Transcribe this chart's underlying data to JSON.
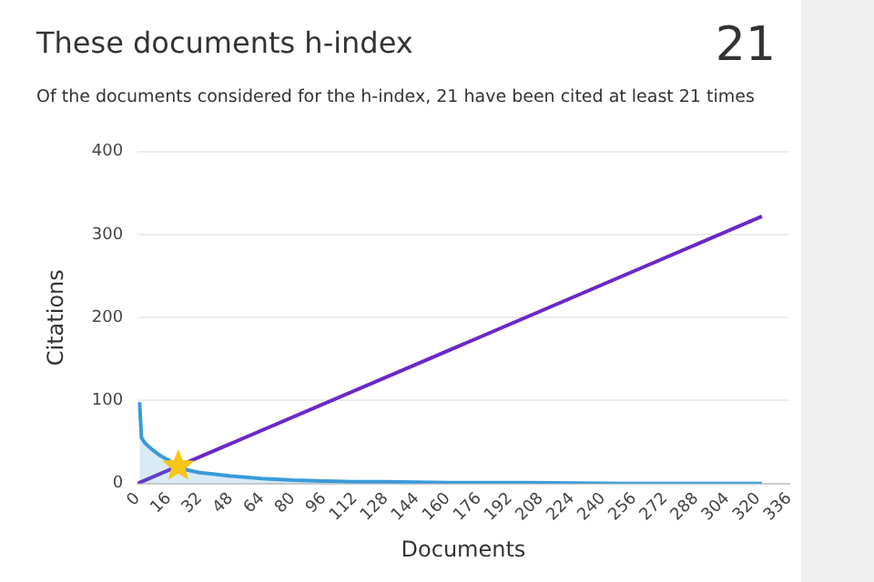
{
  "chart_data": {
    "type": "line",
    "title": "These documents h-index",
    "subtitle": "Of the documents considered for the h-index, 21 have been cited at least 21 times",
    "annotations": [
      "21"
    ],
    "xlabel": "Documents",
    "ylabel": "Citations",
    "xlim": [
      0,
      336
    ],
    "xticks": [
      0,
      16,
      32,
      48,
      64,
      80,
      96,
      112,
      128,
      144,
      160,
      176,
      192,
      208,
      224,
      240,
      256,
      272,
      288,
      304,
      320,
      336
    ],
    "ylim": [
      0,
      400
    ],
    "yticks": [
      0,
      100,
      200,
      300,
      400
    ],
    "grid": "y",
    "legend": false,
    "series": [
      {
        "type": "area",
        "color": "#3a9ad9",
        "x": [
          1,
          2,
          4,
          8,
          12,
          16,
          21,
          26,
          32,
          40,
          48,
          64,
          80,
          96,
          112,
          128,
          160,
          200,
          250,
          322
        ],
        "values": [
          98,
          55,
          48,
          40,
          33,
          28,
          21,
          16,
          13,
          11,
          9,
          6,
          4,
          3,
          2,
          2,
          1,
          1,
          0,
          0
        ]
      },
      {
        "type": "line",
        "color": "#6a28c8",
        "x": [
          0,
          322
        ],
        "values": [
          0,
          322
        ]
      },
      {
        "type": "scatter",
        "color": "#f5c518",
        "marker": "star",
        "x": [
          21
        ],
        "values": [
          21
        ]
      }
    ]
  }
}
